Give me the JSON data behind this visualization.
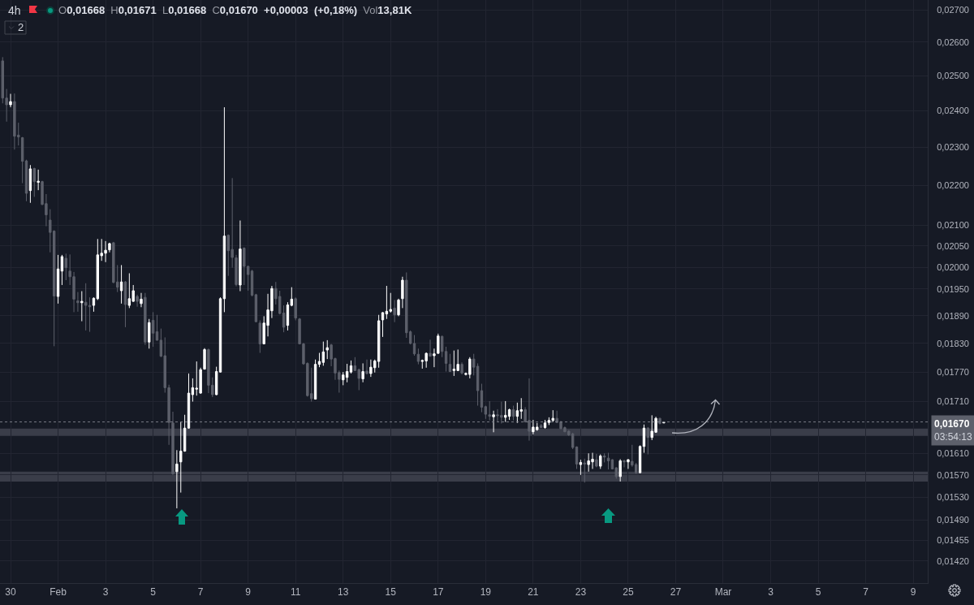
{
  "chart_data": {
    "type": "candlestick",
    "title": "4h",
    "subtitle": "O0,01668 H0,01671 L0,01668 C0,01670 +0,00003 (+0,18%) Vol13,81K",
    "annotations": [
      "2"
    ],
    "x": [
      "--01-29T16:00",
      "--01-29T20:00",
      "--01-30T00:00",
      "--01-30T04:00",
      "--01-30T08:00",
      "--01-30T12:00",
      "--01-30T16:00",
      "--01-30T20:00",
      "--01-31T00:00",
      "--01-31T04:00",
      "--01-31T08:00",
      "--01-31T12:00",
      "--01-31T16:00",
      "--01-31T20:00",
      "--02-01T00:00",
      "--02-01T04:00",
      "--02-01T08:00",
      "--02-01T12:00",
      "--02-01T16:00",
      "--02-01T20:00",
      "--02-02T00:00",
      "--02-02T04:00",
      "--02-02T08:00",
      "--02-02T12:00",
      "--02-02T16:00",
      "--02-02T20:00",
      "--02-03T00:00",
      "--02-03T04:00",
      "--02-03T08:00",
      "--02-03T12:00",
      "--02-03T16:00",
      "--02-03T20:00",
      "--02-04T00:00",
      "--02-04T04:00",
      "--02-04T08:00",
      "--02-04T12:00",
      "--02-04T16:00",
      "--02-04T20:00",
      "--02-05T00:00",
      "--02-05T04:00",
      "--02-05T08:00",
      "--02-05T12:00",
      "--02-05T16:00",
      "--02-05T20:00",
      "--02-06T00:00",
      "--02-06T04:00",
      "--02-06T08:00",
      "--02-06T12:00",
      "--02-06T16:00",
      "--02-06T20:00",
      "--02-07T00:00",
      "--02-07T04:00",
      "--02-07T08:00",
      "--02-07T12:00",
      "--02-07T16:00",
      "--02-07T20:00",
      "--02-08T00:00",
      "--02-08T04:00",
      "--02-08T08:00",
      "--02-08T12:00",
      "--02-08T16:00",
      "--02-08T20:00",
      "--02-09T00:00",
      "--02-09T04:00",
      "--02-09T08:00",
      "--02-09T12:00",
      "--02-09T16:00",
      "--02-09T20:00",
      "--02-10T00:00",
      "--02-10T04:00",
      "--02-10T08:00",
      "--02-10T12:00",
      "--02-10T16:00",
      "--02-10T20:00",
      "--02-11T00:00",
      "--02-11T04:00",
      "--02-11T08:00",
      "--02-11T12:00",
      "--02-11T16:00",
      "--02-11T20:00",
      "--02-12T00:00",
      "--02-12T04:00",
      "--02-12T08:00",
      "--02-12T12:00",
      "--02-12T16:00",
      "--02-12T20:00",
      "--02-13T00:00",
      "--02-13T04:00",
      "--02-13T08:00",
      "--02-13T12:00",
      "--02-13T16:00",
      "--02-13T20:00",
      "--02-14T00:00",
      "--02-14T04:00",
      "--02-14T08:00",
      "--02-14T12:00",
      "--02-14T16:00",
      "--02-14T20:00",
      "--02-15T00:00",
      "--02-15T04:00",
      "--02-15T08:00",
      "--02-15T12:00",
      "--02-15T16:00",
      "--02-15T20:00",
      "--02-16T00:00",
      "--02-16T04:00",
      "--02-16T08:00",
      "--02-16T12:00",
      "--02-16T16:00",
      "--02-16T20:00",
      "--02-17T00:00",
      "--02-17T04:00",
      "--02-17T08:00",
      "--02-17T12:00",
      "--02-17T16:00",
      "--02-17T20:00",
      "--02-18T00:00",
      "--02-18T04:00",
      "--02-18T08:00",
      "--02-18T12:00",
      "--02-18T16:00",
      "--02-18T20:00",
      "--02-19T00:00",
      "--02-19T04:00",
      "--02-19T08:00",
      "--02-19T12:00",
      "--02-19T16:00",
      "--02-19T20:00",
      "--02-20T00:00",
      "--02-20T04:00",
      "--02-20T08:00",
      "--02-20T12:00",
      "--02-20T16:00",
      "--02-20T20:00",
      "--02-21T00:00",
      "--02-21T04:00",
      "--02-21T08:00",
      "--02-21T12:00",
      "--02-21T16:00",
      "--02-21T20:00",
      "--02-22T00:00",
      "--02-22T04:00",
      "--02-22T08:00",
      "--02-22T12:00",
      "--02-22T16:00",
      "--02-22T20:00",
      "--02-23T00:00",
      "--02-23T04:00",
      "--02-23T08:00",
      "--02-23T12:00",
      "--02-23T16:00",
      "--02-23T20:00",
      "--02-24T00:00",
      "--02-24T04:00",
      "--02-24T08:00",
      "--02-24T12:00",
      "--02-24T16:00",
      "--02-24T20:00",
      "--02-25T00:00",
      "--02-25T04:00",
      "--02-25T08:00",
      "--02-25T12:00",
      "--02-25T16:00",
      "--02-25T20:00",
      "--02-26T00:00",
      "--02-26T04:00",
      "--02-26T08:00",
      "--02-26T12:00"
    ],
    "ohlc": [
      [
        0.02544,
        0.02555,
        0.02421,
        0.02436
      ],
      [
        0.02436,
        0.02462,
        0.0237,
        0.02417
      ],
      [
        0.02417,
        0.02448,
        0.0241,
        0.02426
      ],
      [
        0.02426,
        0.02449,
        0.02294,
        0.0233
      ],
      [
        0.02333,
        0.02367,
        0.02305,
        0.02328
      ],
      [
        0.02326,
        0.02328,
        0.02206,
        0.02263
      ],
      [
        0.02264,
        0.02267,
        0.0216,
        0.0218
      ],
      [
        0.02187,
        0.02253,
        0.02156,
        0.02243
      ],
      [
        0.02244,
        0.02246,
        0.02171,
        0.0221
      ],
      [
        0.02208,
        0.02241,
        0.02188,
        0.02211
      ],
      [
        0.0221,
        0.02212,
        0.0215,
        0.02152
      ],
      [
        0.02154,
        0.02178,
        0.02098,
        0.02126
      ],
      [
        0.02113,
        0.0214,
        0.02035,
        0.02083
      ],
      [
        0.02086,
        0.02088,
        0.01824,
        0.01934
      ],
      [
        0.01933,
        0.02029,
        0.01917,
        0.01996
      ],
      [
        0.01991,
        0.02029,
        0.01959,
        0.02025
      ],
      [
        0.02021,
        0.02032,
        0.0197,
        0.01999
      ],
      [
        0.01991,
        0.0203,
        0.01959,
        0.01978
      ],
      [
        0.01978,
        0.01989,
        0.01898,
        0.01927
      ],
      [
        0.01923,
        0.01943,
        0.01899,
        0.01919
      ],
      [
        0.01919,
        0.01945,
        0.01878,
        0.01922
      ],
      [
        0.0192,
        0.01963,
        0.01858,
        0.01913
      ],
      [
        0.01913,
        0.01931,
        0.01855,
        0.0191
      ],
      [
        0.01913,
        0.01931,
        0.01899,
        0.01929
      ],
      [
        0.01928,
        0.02067,
        0.01925,
        0.02029
      ],
      [
        0.02027,
        0.02067,
        0.02015,
        0.02033
      ],
      [
        0.02033,
        0.02062,
        0.02012,
        0.0204
      ],
      [
        0.02041,
        0.02058,
        0.02035,
        0.02056
      ],
      [
        0.02058,
        0.0206,
        0.01963,
        0.01965
      ],
      [
        0.01966,
        0.02005,
        0.01943,
        0.01954
      ],
      [
        0.01946,
        0.02005,
        0.01917,
        0.01966
      ],
      [
        0.01966,
        0.01968,
        0.01865,
        0.01915
      ],
      [
        0.01913,
        0.01986,
        0.01907,
        0.01928
      ],
      [
        0.01922,
        0.01959,
        0.01921,
        0.01946
      ],
      [
        0.01933,
        0.01937,
        0.0191,
        0.01922
      ],
      [
        0.01917,
        0.01941,
        0.01909,
        0.01927
      ],
      [
        0.01931,
        0.01941,
        0.01827,
        0.01833
      ],
      [
        0.01833,
        0.01883,
        0.01819,
        0.01875
      ],
      [
        0.0188,
        0.01898,
        0.01823,
        0.01852
      ],
      [
        0.01855,
        0.01892,
        0.01836,
        0.01837
      ],
      [
        0.01837,
        0.01862,
        0.01801,
        0.01803
      ],
      [
        0.01804,
        0.01843,
        0.01728,
        0.01738
      ],
      [
        0.01738,
        0.01744,
        0.01626,
        0.01669
      ],
      [
        0.01668,
        0.0169,
        0.0157,
        0.01572
      ],
      [
        0.01576,
        0.01616,
        0.0151,
        0.0159
      ],
      [
        0.01594,
        0.0167,
        0.01538,
        0.01614
      ],
      [
        0.01614,
        0.01684,
        0.01613,
        0.01658
      ],
      [
        0.01658,
        0.01767,
        0.01657,
        0.01727
      ],
      [
        0.01724,
        0.01757,
        0.0171,
        0.01738
      ],
      [
        0.01735,
        0.01792,
        0.01722,
        0.01737
      ],
      [
        0.01727,
        0.01779,
        0.01726,
        0.01775
      ],
      [
        0.01776,
        0.0182,
        0.01775,
        0.01817
      ],
      [
        0.01817,
        0.01819,
        0.01727,
        0.01743
      ],
      [
        0.01743,
        0.01759,
        0.01719,
        0.01724
      ],
      [
        0.01724,
        0.01781,
        0.01723,
        0.01771
      ],
      [
        0.0177,
        0.01931,
        0.01769,
        0.01928
      ],
      [
        0.01928,
        0.0241,
        0.01898,
        0.02074
      ],
      [
        0.02076,
        0.02078,
        0.0198,
        0.02039
      ],
      [
        0.02042,
        0.02219,
        0.01999,
        0.02023
      ],
      [
        0.02022,
        0.02029,
        0.01956,
        0.0196
      ],
      [
        0.01959,
        0.02112,
        0.01945,
        0.02043
      ],
      [
        0.02045,
        0.02047,
        0.01959,
        0.02002
      ],
      [
        0.02002,
        0.02004,
        0.01946,
        0.01983
      ],
      [
        0.01991,
        0.01994,
        0.01933,
        0.01936
      ],
      [
        0.01937,
        0.01939,
        0.01876,
        0.01877
      ],
      [
        0.01874,
        0.0188,
        0.0181,
        0.01829
      ],
      [
        0.01829,
        0.01889,
        0.01828,
        0.01874
      ],
      [
        0.01869,
        0.01939,
        0.01845,
        0.01903
      ],
      [
        0.01901,
        0.01957,
        0.01885,
        0.01951
      ],
      [
        0.01951,
        0.01966,
        0.01915,
        0.01928
      ],
      [
        0.01933,
        0.01946,
        0.01893,
        0.01895
      ],
      [
        0.01896,
        0.01913,
        0.01854,
        0.01865
      ],
      [
        0.01869,
        0.0192,
        0.01858,
        0.01914
      ],
      [
        0.01913,
        0.01954,
        0.01911,
        0.01927
      ],
      [
        0.01928,
        0.01931,
        0.0188,
        0.01885
      ],
      [
        0.01883,
        0.01885,
        0.01828,
        0.01829
      ],
      [
        0.01829,
        0.01831,
        0.01785,
        0.01787
      ],
      [
        0.01788,
        0.0179,
        0.0172,
        0.01722
      ],
      [
        0.01726,
        0.01779,
        0.0171,
        0.01716
      ],
      [
        0.01715,
        0.01796,
        0.01714,
        0.01786
      ],
      [
        0.01786,
        0.0181,
        0.0178,
        0.01792
      ],
      [
        0.0179,
        0.01834,
        0.01783,
        0.01812
      ],
      [
        0.01816,
        0.01837,
        0.01797,
        0.01821
      ],
      [
        0.01827,
        0.01829,
        0.01782,
        0.01797
      ],
      [
        0.01798,
        0.018,
        0.01754,
        0.01768
      ],
      [
        0.01769,
        0.01773,
        0.01728,
        0.01755
      ],
      [
        0.01754,
        0.0177,
        0.01743,
        0.01764
      ],
      [
        0.01759,
        0.01787,
        0.01749,
        0.01771
      ],
      [
        0.0177,
        0.01794,
        0.01767,
        0.01783
      ],
      [
        0.01783,
        0.01801,
        0.01772,
        0.01773
      ],
      [
        0.01775,
        0.01777,
        0.01733,
        0.01757
      ],
      [
        0.01756,
        0.01788,
        0.01749,
        0.01771
      ],
      [
        0.01772,
        0.01796,
        0.01765,
        0.01767
      ],
      [
        0.01767,
        0.01796,
        0.0176,
        0.0178
      ],
      [
        0.01779,
        0.01796,
        0.01769,
        0.01793
      ],
      [
        0.01792,
        0.01892,
        0.01779,
        0.01879
      ],
      [
        0.01881,
        0.01898,
        0.01844,
        0.01897
      ],
      [
        0.01894,
        0.01957,
        0.01883,
        0.019
      ],
      [
        0.019,
        0.01941,
        0.01897,
        0.01904
      ],
      [
        0.01907,
        0.01925,
        0.01876,
        0.01892
      ],
      [
        0.01892,
        0.01928,
        0.01889,
        0.01925
      ],
      [
        0.01928,
        0.01978,
        0.01907,
        0.0197
      ],
      [
        0.0197,
        0.01988,
        0.01842,
        0.01853
      ],
      [
        0.01855,
        0.01858,
        0.01828,
        0.0183
      ],
      [
        0.0183,
        0.01848,
        0.01804,
        0.01808
      ],
      [
        0.01807,
        0.01819,
        0.01786,
        0.01792
      ],
      [
        0.01792,
        0.01796,
        0.01777,
        0.01794
      ],
      [
        0.01793,
        0.01811,
        0.01779,
        0.01809
      ],
      [
        0.01809,
        0.01838,
        0.01802,
        0.01803
      ],
      [
        0.01804,
        0.01819,
        0.0178,
        0.01808
      ],
      [
        0.01809,
        0.01851,
        0.01808,
        0.01846
      ],
      [
        0.01845,
        0.01847,
        0.01801,
        0.01813
      ],
      [
        0.01813,
        0.01823,
        0.01771,
        0.01788
      ],
      [
        0.01786,
        0.01808,
        0.0177,
        0.01771
      ],
      [
        0.01773,
        0.01815,
        0.01762,
        0.01776
      ],
      [
        0.01773,
        0.01817,
        0.01772,
        0.01786
      ],
      [
        0.01786,
        0.0179,
        0.01765,
        0.01768
      ],
      [
        0.01765,
        0.01769,
        0.01763,
        0.01767
      ],
      [
        0.01765,
        0.01801,
        0.01757,
        0.01797
      ],
      [
        0.01797,
        0.01808,
        0.01763,
        0.0178
      ],
      [
        0.01782,
        0.01788,
        0.01702,
        0.01732
      ],
      [
        0.01732,
        0.01746,
        0.01689,
        0.01699
      ],
      [
        0.017,
        0.01702,
        0.01676,
        0.01685
      ],
      [
        0.01684,
        0.01711,
        0.01673,
        0.01681
      ],
      [
        0.0168,
        0.01692,
        0.0165,
        0.01684
      ],
      [
        0.01684,
        0.01695,
        0.0167,
        0.01682
      ],
      [
        0.01683,
        0.0171,
        0.01667,
        0.01679
      ],
      [
        0.01679,
        0.01711,
        0.0167,
        0.01683
      ],
      [
        0.01681,
        0.01696,
        0.01674,
        0.01694
      ],
      [
        0.01694,
        0.01702,
        0.01673,
        0.01681
      ],
      [
        0.01681,
        0.01708,
        0.01668,
        0.01692
      ],
      [
        0.01691,
        0.01717,
        0.01676,
        0.01694
      ],
      [
        0.01694,
        0.01699,
        0.01669,
        0.0167
      ],
      [
        0.01673,
        0.01757,
        0.01634,
        0.01652
      ],
      [
        0.01651,
        0.01674,
        0.01646,
        0.0166
      ],
      [
        0.01655,
        0.01668,
        0.01653,
        0.0166
      ],
      [
        0.01663,
        0.01666,
        0.01658,
        0.01659
      ],
      [
        0.01659,
        0.01674,
        0.01657,
        0.01668
      ],
      [
        0.01669,
        0.01679,
        0.01664,
        0.01673
      ],
      [
        0.01673,
        0.01693,
        0.0167,
        0.01677
      ],
      [
        0.01677,
        0.01692,
        0.01668,
        0.01669
      ],
      [
        0.0167,
        0.01672,
        0.01656,
        0.01657
      ],
      [
        0.01659,
        0.01661,
        0.0165,
        0.01651
      ],
      [
        0.01652,
        0.01654,
        0.01643,
        0.01645
      ],
      [
        0.01647,
        0.01649,
        0.01618,
        0.01621
      ],
      [
        0.01622,
        0.01623,
        0.01581,
        0.0159
      ],
      [
        0.01589,
        0.01598,
        0.0157,
        0.01593
      ],
      [
        0.01592,
        0.016,
        0.01556,
        0.0159
      ],
      [
        0.01589,
        0.0161,
        0.01576,
        0.01596
      ],
      [
        0.01594,
        0.01611,
        0.01581,
        0.01599
      ],
      [
        0.01598,
        0.01609,
        0.01584,
        0.01586
      ],
      [
        0.01586,
        0.01608,
        0.01581,
        0.01605
      ],
      [
        0.01605,
        0.0161,
        0.01593,
        0.01603
      ],
      [
        0.01601,
        0.01611,
        0.0158,
        0.01596
      ],
      [
        0.01598,
        0.01599,
        0.0158,
        0.01581
      ],
      [
        0.01583,
        0.01584,
        0.01563,
        0.01567
      ],
      [
        0.01567,
        0.01599,
        0.01558,
        0.01596
      ],
      [
        0.01596,
        0.01598,
        0.01584,
        0.01594
      ],
      [
        0.01594,
        0.01599,
        0.01581,
        0.01598
      ],
      [
        0.01595,
        0.01626,
        0.01585,
        0.01588
      ],
      [
        0.01589,
        0.01592,
        0.01572,
        0.01574
      ],
      [
        0.01574,
        0.01625,
        0.01573,
        0.01623
      ],
      [
        0.01623,
        0.01665,
        0.01611,
        0.01658
      ],
      [
        0.01658,
        0.0166,
        0.01608,
        0.0164
      ],
      [
        0.0164,
        0.01683,
        0.01635,
        0.01652
      ],
      [
        0.0165,
        0.0168,
        0.01649,
        0.01677
      ],
      [
        0.01677,
        0.01678,
        0.01665,
        0.01667
      ],
      [
        0.01668,
        0.01671,
        0.01668,
        0.0167
      ]
    ],
    "colors": [
      "#5d606b",
      "#5d606b",
      "#ffffff",
      "#5d606b",
      "#5d606b",
      "#5d606b",
      "#5d606b",
      "#ffffff",
      "#5d606b",
      "#ffffff",
      "#5d606b",
      "#5d606b",
      "#5d606b",
      "#5d606b",
      "#ffffff",
      "#ffffff",
      "#5d606b",
      "#5d606b",
      "#5d606b",
      "#5d606b",
      "#ffffff",
      "#5d606b",
      "#5d606b",
      "#ffffff",
      "#ffffff",
      "#ffffff",
      "#ffffff",
      "#ffffff",
      "#5d606b",
      "#5d606b",
      "#ffffff",
      "#5d606b",
      "#ffffff",
      "#ffffff",
      "#5d606b",
      "#ffffff",
      "#5d606b",
      "#ffffff",
      "#5d606b",
      "#5d606b",
      "#5d606b",
      "#5d606b",
      "#5d606b",
      "#5d606b",
      "#ffffff",
      "#ffffff",
      "#ffffff",
      "#ffffff",
      "#ffffff",
      "#ffffff",
      "#ffffff",
      "#ffffff",
      "#5d606b",
      "#5d606b",
      "#ffffff",
      "#ffffff",
      "#ffffff",
      "#5d606b",
      "#5d606b",
      "#5d606b",
      "#ffffff",
      "#5d606b",
      "#5d606b",
      "#5d606b",
      "#5d606b",
      "#5d606b",
      "#ffffff",
      "#ffffff",
      "#ffffff",
      "#5d606b",
      "#5d606b",
      "#5d606b",
      "#ffffff",
      "#ffffff",
      "#5d606b",
      "#5d606b",
      "#5d606b",
      "#5d606b",
      "#5d606b",
      "#ffffff",
      "#ffffff",
      "#ffffff",
      "#ffffff",
      "#5d606b",
      "#5d606b",
      "#5d606b",
      "#ffffff",
      "#ffffff",
      "#ffffff",
      "#5d606b",
      "#5d606b",
      "#ffffff",
      "#5d606b",
      "#ffffff",
      "#ffffff",
      "#ffffff",
      "#ffffff",
      "#ffffff",
      "#ffffff",
      "#5d606b",
      "#ffffff",
      "#ffffff",
      "#5d606b",
      "#5d606b",
      "#5d606b",
      "#5d606b",
      "#ffffff",
      "#ffffff",
      "#5d606b",
      "#ffffff",
      "#ffffff",
      "#5d606b",
      "#5d606b",
      "#5d606b",
      "#ffffff",
      "#ffffff",
      "#5d606b",
      "#ffffff",
      "#ffffff",
      "#5d606b",
      "#5d606b",
      "#5d606b",
      "#5d606b",
      "#5d606b",
      "#ffffff",
      "#5d606b",
      "#5d606b",
      "#ffffff",
      "#ffffff",
      "#5d606b",
      "#ffffff",
      "#ffffff",
      "#5d606b",
      "#5d606b",
      "#ffffff",
      "#ffffff",
      "#5d606b",
      "#ffffff",
      "#ffffff",
      "#ffffff",
      "#5d606b",
      "#5d606b",
      "#5d606b",
      "#5d606b",
      "#5d606b",
      "#5d606b",
      "#ffffff",
      "#5d606b",
      "#ffffff",
      "#ffffff",
      "#5d606b",
      "#ffffff",
      "#5d606b",
      "#5d606b",
      "#5d606b",
      "#5d606b",
      "#ffffff",
      "#5d606b",
      "#ffffff",
      "#5d606b",
      "#5d606b",
      "#ffffff",
      "#ffffff",
      "#5d606b",
      "#ffffff",
      "#ffffff",
      "#5d606b",
      "#ffffff"
    ],
    "xlim": [
      "--01-29T13:20",
      "--03-09T14:40"
    ],
    "xticks": [
      {
        "value": "--01-30",
        "label": "30"
      },
      {
        "value": "--02-01",
        "label": "Feb"
      },
      {
        "value": "--02-03",
        "label": "3"
      },
      {
        "value": "--02-05",
        "label": "5"
      },
      {
        "value": "--02-07",
        "label": "7"
      },
      {
        "value": "--02-09",
        "label": "9"
      },
      {
        "value": "--02-11",
        "label": "11"
      },
      {
        "value": "--02-13",
        "label": "13"
      },
      {
        "value": "--02-15",
        "label": "15"
      },
      {
        "value": "--02-17",
        "label": "17"
      },
      {
        "value": "--02-19",
        "label": "19"
      },
      {
        "value": "--02-21",
        "label": "21"
      },
      {
        "value": "--02-23",
        "label": "23"
      },
      {
        "value": "--02-25",
        "label": "25"
      },
      {
        "value": "--02-27",
        "label": "27"
      },
      {
        "value": "--03-01",
        "label": "Mar"
      },
      {
        "value": "--03-03",
        "label": "3"
      },
      {
        "value": "--03-05",
        "label": "5"
      },
      {
        "value": "--03-07",
        "label": "7"
      },
      {
        "value": "--03-09",
        "label": "9"
      }
    ],
    "ylim": [
      0.01384,
      0.02731
    ],
    "yticks": [
      {
        "value": 0.027,
        "label": "0,02700"
      },
      {
        "value": 0.026,
        "label": "0,02600"
      },
      {
        "value": 0.025,
        "label": "0,02500"
      },
      {
        "value": 0.024,
        "label": "0,02400"
      },
      {
        "value": 0.023,
        "label": "0,02300"
      },
      {
        "value": 0.022,
        "label": "0,02200"
      },
      {
        "value": 0.021,
        "label": "0,02100"
      },
      {
        "value": 0.0205,
        "label": "0,02050"
      },
      {
        "value": 0.02,
        "label": "0,02000"
      },
      {
        "value": 0.0195,
        "label": "0,01950"
      },
      {
        "value": 0.0189,
        "label": "0,01890"
      },
      {
        "value": 0.0183,
        "label": "0,01830"
      },
      {
        "value": 0.0177,
        "label": "0,01770"
      },
      {
        "value": 0.0171,
        "label": "0,01710"
      },
      {
        "value": 0.0161,
        "label": "0,01610"
      },
      {
        "value": 0.0157,
        "label": "0,01570"
      },
      {
        "value": 0.0153,
        "label": "0,01530"
      },
      {
        "value": 0.0149,
        "label": "0,01490"
      },
      {
        "value": 0.01455,
        "label": "0,01455"
      },
      {
        "value": 0.0142,
        "label": "0,01420"
      }
    ],
    "log": true,
    "grid": true,
    "ref_lines": [
      {
        "axis": "y",
        "value": 0.0167,
        "label": "0,01670\n03:54:13",
        "color": "#787b86",
        "line_style": "dotted"
      }
    ],
    "bands": [
      {
        "axis": "y",
        "from": 0.01643,
        "to": 0.01657,
        "color": "#3a3d49"
      },
      {
        "axis": "y",
        "from": 0.01558,
        "to": 0.01576,
        "color": "#3a3d49"
      }
    ]
  }
}
